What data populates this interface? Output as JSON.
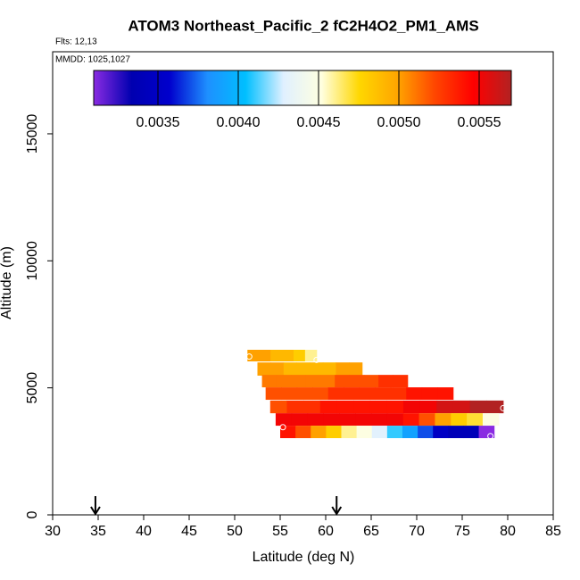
{
  "chart_data": {
    "type": "curtain",
    "title": "ATOM3 Northeast_Pacific_2 fC2H4O2_PM1_AMS",
    "flights": "Flts: 12,13",
    "dates": "MMDD: 1025,1027",
    "xlabel": "Latitude (deg N)",
    "ylabel": "Altitude (m)",
    "xlim": [
      30,
      85
    ],
    "xticks": [
      30,
      35,
      40,
      45,
      50,
      55,
      60,
      65,
      70,
      75,
      80,
      85
    ],
    "ylim": [
      0,
      18230
    ],
    "yticks": [
      0,
      5000,
      10000,
      15000
    ],
    "clim": [
      0.0031,
      0.0057
    ],
    "cticks": [
      0.0035,
      {
        "value": 0.004,
        "label": "0.0040"
      },
      0.0045,
      {
        "value": 0.005,
        "label": "0.0050"
      },
      0.0055
    ],
    "colors": [
      "#8a2be2",
      "#0000b0",
      "#0000cd",
      "#1e90ff",
      "#00bfff",
      "#e0f0ff",
      "#ffffe0",
      "#ffd700",
      "#ffa500",
      "#ff4500",
      "#ff0000",
      "#b22222"
    ],
    "rows": [
      {
        "alt_bottom": 6041,
        "alt_top": 6498,
        "lat_start": 51.4,
        "lat_end": 59.0,
        "values": [
          0.005,
          0.005,
          0.0049,
          0.0049,
          0.0048,
          0.0046
        ]
      },
      {
        "alt_bottom": 5480,
        "alt_top": 6000,
        "lat_start": 52.5,
        "lat_end": 64.0,
        "values": [
          0.005,
          0.005,
          0.0049,
          0.0049,
          0.0049,
          0.0049,
          0.005,
          0.005
        ]
      },
      {
        "alt_bottom": 5020,
        "alt_top": 5510,
        "lat_start": 53.0,
        "lat_end": 69.0,
        "values": [
          0.0051,
          0.0051,
          0.0051,
          0.0051,
          0.0051,
          0.0052,
          0.0052,
          0.0052,
          0.0053,
          0.0053
        ]
      },
      {
        "alt_bottom": 4530,
        "alt_top": 5020,
        "lat_start": 53.4,
        "lat_end": 74.0,
        "values": [
          0.0052,
          0.0052,
          0.0052,
          0.0052,
          0.0053,
          0.0053,
          0.0053,
          0.0053,
          0.0053,
          0.0054,
          0.0054,
          0.0054
        ]
      },
      {
        "alt_bottom": 4000,
        "alt_top": 4500,
        "lat_start": 53.9,
        "lat_end": 79.5,
        "values": [
          0.0052,
          0.0053,
          0.0053,
          0.0054,
          0.0054,
          0.0054,
          0.0054,
          0.0054,
          0.0055,
          0.0055,
          0.0056,
          0.0056,
          0.0057,
          0.0057
        ]
      },
      {
        "alt_bottom": 3510,
        "alt_top": 4000,
        "lat_start": 54.5,
        "lat_end": 79.0,
        "values": [
          0.0055,
          0.0055,
          0.0055,
          0.0055,
          0.0055,
          0.0055,
          0.0055,
          0.0055,
          0.0054,
          0.0052,
          0.005,
          0.0048,
          0.0047,
          0.0045
        ]
      },
      {
        "alt_bottom": 3020,
        "alt_top": 3510,
        "lat_start": 55.0,
        "lat_end": 78.5,
        "values": [
          0.0054,
          0.0052,
          0.005,
          0.0048,
          0.0046,
          0.0045,
          0.0043,
          0.0041,
          0.0039,
          0.0037,
          0.0035,
          0.0034,
          0.0034,
          0.0031
        ]
      }
    ],
    "points": {
      "x": [
        51.6,
        59.0,
        79.5,
        55.3,
        78.1
      ],
      "y": [
        6230,
        6100,
        4200,
        3450,
        3100
      ]
    },
    "arrows_lat": [
      34.7,
      61.2
    ]
  }
}
